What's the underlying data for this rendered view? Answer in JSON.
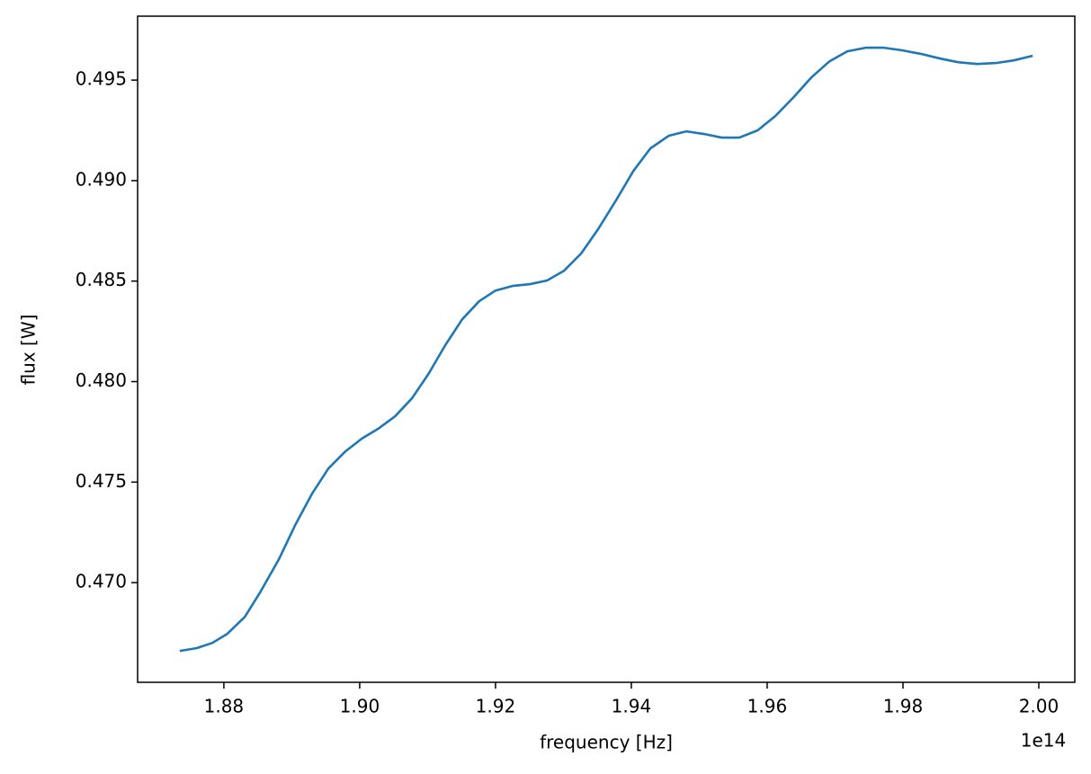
{
  "chart_data": {
    "type": "line",
    "x_label": "frequency [Hz]",
    "y_label": "flux [W]",
    "x_offset_label": "1e14",
    "x": [
      1.8735,
      1.876,
      1.8783,
      1.8805,
      1.8831,
      1.8854,
      1.8881,
      1.8905,
      1.893,
      1.8954,
      1.8979,
      1.9003,
      1.9027,
      1.9052,
      1.9077,
      1.9102,
      1.9126,
      1.9151,
      1.9176,
      1.92,
      1.9225,
      1.9251,
      1.9276,
      1.9301,
      1.9326,
      1.9351,
      1.9378,
      1.9403,
      1.9428,
      1.9455,
      1.9481,
      1.9507,
      1.9533,
      1.9559,
      1.9586,
      1.9612,
      1.9639,
      1.9665,
      1.9692,
      1.9718,
      1.9745,
      1.9772,
      1.9799,
      1.9827,
      1.9855,
      1.9881,
      1.9909,
      1.9937,
      1.9963,
      1.9991
    ],
    "series": [
      {
        "name": "flux",
        "color": "#1f77b4",
        "values": [
          0.4666,
          0.46674,
          0.467,
          0.46745,
          0.4683,
          0.46955,
          0.47116,
          0.47286,
          0.47443,
          0.47568,
          0.47653,
          0.47716,
          0.47765,
          0.47827,
          0.47917,
          0.48042,
          0.48181,
          0.4831,
          0.484,
          0.48453,
          0.48476,
          0.48485,
          0.48503,
          0.48552,
          0.48637,
          0.48758,
          0.48905,
          0.49048,
          0.4916,
          0.49223,
          0.49245,
          0.49232,
          0.49214,
          0.49214,
          0.4925,
          0.49321,
          0.49415,
          0.49513,
          0.49594,
          0.49643,
          0.49661,
          0.49661,
          0.49648,
          0.4963,
          0.49607,
          0.49589,
          0.4958,
          0.49585,
          0.49598,
          0.49621
        ]
      }
    ],
    "xlim": [
      1.8673,
      2.0053
    ],
    "ylim": [
      0.46504,
      0.49818
    ],
    "xticks": [
      1.88,
      1.9,
      1.92,
      1.94,
      1.96,
      1.98,
      2.0
    ],
    "xtick_labels": [
      "1.88",
      "1.90",
      "1.92",
      "1.94",
      "1.96",
      "1.98",
      "2.00"
    ],
    "yticks": [
      {
        "value": 0.47,
        "label": "0.470"
      },
      0.475,
      {
        "value": 0.48,
        "label": "0.480"
      },
      0.485,
      {
        "value": 0.49,
        "label": "0.490"
      },
      0.495
    ],
    "grid": false
  }
}
